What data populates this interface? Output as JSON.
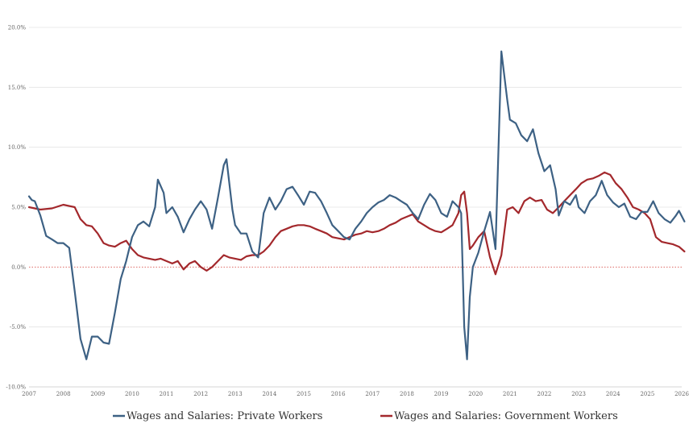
{
  "chart_data": {
    "type": "line",
    "title": "",
    "xlabel": "",
    "ylabel": "",
    "ylim": [
      -10,
      20
    ],
    "xlim": [
      2007,
      2026
    ],
    "y_ticks": [
      "20.0%",
      "15.0%",
      "10.0%",
      "5.0%",
      "0.0%",
      "-5.0%",
      "-10.0%"
    ],
    "y_tick_values": [
      20,
      15,
      10,
      5,
      0,
      -5,
      -10
    ],
    "x_ticks": [
      "2007",
      "2008",
      "2009",
      "2010",
      "2011",
      "2012",
      "2013",
      "2014",
      "2015",
      "2016",
      "2017",
      "2018",
      "2019",
      "2020",
      "2021",
      "2022",
      "2023",
      "2024",
      "2025",
      "2026"
    ],
    "x_tick_values": [
      2007,
      2008,
      2009,
      2010,
      2011,
      2012,
      2013,
      2014,
      2015,
      2016,
      2017,
      2018,
      2019,
      2020,
      2021,
      2022,
      2023,
      2024,
      2025,
      2026
    ],
    "grid": "horizontal",
    "zero_line": "dotted",
    "legend_position": "bottom",
    "series": [
      {
        "name": "Wages and Salaries: Private Workers",
        "color": "#3d6184",
        "points": [
          [
            2007.0,
            5.9
          ],
          [
            2007.08,
            5.6
          ],
          [
            2007.17,
            5.5
          ],
          [
            2007.33,
            4.3
          ],
          [
            2007.5,
            2.6
          ],
          [
            2007.67,
            2.3
          ],
          [
            2007.83,
            2.0
          ],
          [
            2008.0,
            2.0
          ],
          [
            2008.17,
            1.6
          ],
          [
            2008.33,
            -2.0
          ],
          [
            2008.5,
            -6.0
          ],
          [
            2008.67,
            -7.7
          ],
          [
            2008.83,
            -5.8
          ],
          [
            2009.0,
            -5.8
          ],
          [
            2009.17,
            -6.3
          ],
          [
            2009.33,
            -6.4
          ],
          [
            2009.5,
            -3.8
          ],
          [
            2009.67,
            -1.0
          ],
          [
            2009.83,
            0.5
          ],
          [
            2010.0,
            2.5
          ],
          [
            2010.17,
            3.5
          ],
          [
            2010.33,
            3.8
          ],
          [
            2010.5,
            3.4
          ],
          [
            2010.67,
            5.0
          ],
          [
            2010.75,
            7.3
          ],
          [
            2010.92,
            6.2
          ],
          [
            2011.0,
            4.5
          ],
          [
            2011.17,
            5.0
          ],
          [
            2011.33,
            4.2
          ],
          [
            2011.5,
            2.9
          ],
          [
            2011.67,
            4.0
          ],
          [
            2011.83,
            4.8
          ],
          [
            2012.0,
            5.5
          ],
          [
            2012.17,
            4.8
          ],
          [
            2012.33,
            3.2
          ],
          [
            2012.5,
            5.8
          ],
          [
            2012.67,
            8.5
          ],
          [
            2012.75,
            9.0
          ],
          [
            2012.92,
            4.8
          ],
          [
            2013.0,
            3.5
          ],
          [
            2013.17,
            2.8
          ],
          [
            2013.33,
            2.8
          ],
          [
            2013.5,
            1.3
          ],
          [
            2013.67,
            0.8
          ],
          [
            2013.83,
            4.5
          ],
          [
            2014.0,
            5.8
          ],
          [
            2014.17,
            4.8
          ],
          [
            2014.33,
            5.5
          ],
          [
            2014.5,
            6.5
          ],
          [
            2014.67,
            6.7
          ],
          [
            2014.83,
            6.0
          ],
          [
            2015.0,
            5.2
          ],
          [
            2015.17,
            6.3
          ],
          [
            2015.33,
            6.2
          ],
          [
            2015.5,
            5.5
          ],
          [
            2015.67,
            4.5
          ],
          [
            2015.83,
            3.5
          ],
          [
            2016.0,
            3.0
          ],
          [
            2016.17,
            2.5
          ],
          [
            2016.33,
            2.3
          ],
          [
            2016.5,
            3.2
          ],
          [
            2016.67,
            3.8
          ],
          [
            2016.83,
            4.5
          ],
          [
            2017.0,
            5.0
          ],
          [
            2017.17,
            5.4
          ],
          [
            2017.33,
            5.6
          ],
          [
            2017.5,
            6.0
          ],
          [
            2017.67,
            5.8
          ],
          [
            2017.83,
            5.5
          ],
          [
            2018.0,
            5.2
          ],
          [
            2018.17,
            4.5
          ],
          [
            2018.33,
            4.0
          ],
          [
            2018.5,
            5.2
          ],
          [
            2018.67,
            6.1
          ],
          [
            2018.83,
            5.6
          ],
          [
            2019.0,
            4.5
          ],
          [
            2019.17,
            4.2
          ],
          [
            2019.33,
            5.5
          ],
          [
            2019.5,
            5.0
          ],
          [
            2019.58,
            4.5
          ],
          [
            2019.67,
            -5.0
          ],
          [
            2019.75,
            -7.7
          ],
          [
            2019.83,
            -2.5
          ],
          [
            2019.92,
            0.0
          ],
          [
            2020.08,
            1.2
          ],
          [
            2020.25,
            3.0
          ],
          [
            2020.42,
            4.6
          ],
          [
            2020.58,
            1.5
          ],
          [
            2020.75,
            18.0
          ],
          [
            2020.92,
            14.0
          ],
          [
            2021.0,
            12.3
          ],
          [
            2021.17,
            12.0
          ],
          [
            2021.33,
            11.0
          ],
          [
            2021.5,
            10.5
          ],
          [
            2021.67,
            11.5
          ],
          [
            2021.83,
            9.5
          ],
          [
            2022.0,
            8.0
          ],
          [
            2022.17,
            8.5
          ],
          [
            2022.33,
            6.5
          ],
          [
            2022.42,
            4.3
          ],
          [
            2022.58,
            5.5
          ],
          [
            2022.75,
            5.2
          ],
          [
            2022.92,
            6.0
          ],
          [
            2023.0,
            5.0
          ],
          [
            2023.17,
            4.5
          ],
          [
            2023.33,
            5.5
          ],
          [
            2023.5,
            6.0
          ],
          [
            2023.67,
            7.2
          ],
          [
            2023.83,
            6.0
          ],
          [
            2024.0,
            5.4
          ],
          [
            2024.17,
            5.0
          ],
          [
            2024.33,
            5.3
          ],
          [
            2024.5,
            4.2
          ],
          [
            2024.67,
            4.0
          ],
          [
            2024.83,
            4.6
          ],
          [
            2025.0,
            4.6
          ],
          [
            2025.17,
            5.5
          ],
          [
            2025.33,
            4.5
          ],
          [
            2025.5,
            4.0
          ],
          [
            2025.67,
            3.7
          ],
          [
            2025.83,
            4.3
          ],
          [
            2025.92,
            4.7
          ],
          [
            2026.08,
            3.8
          ]
        ]
      },
      {
        "name": "Wages and Salaries: Government Workers",
        "color": "#a3282c",
        "points": [
          [
            2007.0,
            5.0
          ],
          [
            2007.33,
            4.8
          ],
          [
            2007.67,
            4.9
          ],
          [
            2008.0,
            5.2
          ],
          [
            2008.33,
            5.0
          ],
          [
            2008.5,
            4.0
          ],
          [
            2008.67,
            3.5
          ],
          [
            2008.83,
            3.4
          ],
          [
            2009.0,
            2.8
          ],
          [
            2009.17,
            2.0
          ],
          [
            2009.33,
            1.8
          ],
          [
            2009.5,
            1.7
          ],
          [
            2009.67,
            2.0
          ],
          [
            2009.83,
            2.2
          ],
          [
            2010.0,
            1.5
          ],
          [
            2010.17,
            1.0
          ],
          [
            2010.33,
            0.8
          ],
          [
            2010.5,
            0.7
          ],
          [
            2010.67,
            0.6
          ],
          [
            2010.83,
            0.7
          ],
          [
            2011.0,
            0.5
          ],
          [
            2011.17,
            0.3
          ],
          [
            2011.33,
            0.5
          ],
          [
            2011.5,
            -0.2
          ],
          [
            2011.67,
            0.3
          ],
          [
            2011.83,
            0.5
          ],
          [
            2012.0,
            0.0
          ],
          [
            2012.17,
            -0.3
          ],
          [
            2012.33,
            0.0
          ],
          [
            2012.5,
            0.5
          ],
          [
            2012.67,
            1.0
          ],
          [
            2012.83,
            0.8
          ],
          [
            2013.0,
            0.7
          ],
          [
            2013.17,
            0.6
          ],
          [
            2013.33,
            0.9
          ],
          [
            2013.5,
            1.0
          ],
          [
            2013.67,
            1.0
          ],
          [
            2013.83,
            1.3
          ],
          [
            2014.0,
            1.8
          ],
          [
            2014.17,
            2.5
          ],
          [
            2014.33,
            3.0
          ],
          [
            2014.5,
            3.2
          ],
          [
            2014.67,
            3.4
          ],
          [
            2014.83,
            3.5
          ],
          [
            2015.0,
            3.5
          ],
          [
            2015.17,
            3.4
          ],
          [
            2015.33,
            3.2
          ],
          [
            2015.5,
            3.0
          ],
          [
            2015.67,
            2.8
          ],
          [
            2015.83,
            2.5
          ],
          [
            2016.0,
            2.4
          ],
          [
            2016.17,
            2.3
          ],
          [
            2016.33,
            2.5
          ],
          [
            2016.5,
            2.7
          ],
          [
            2016.67,
            2.8
          ],
          [
            2016.83,
            3.0
          ],
          [
            2017.0,
            2.9
          ],
          [
            2017.17,
            3.0
          ],
          [
            2017.33,
            3.2
          ],
          [
            2017.5,
            3.5
          ],
          [
            2017.67,
            3.7
          ],
          [
            2017.83,
            4.0
          ],
          [
            2018.0,
            4.2
          ],
          [
            2018.17,
            4.4
          ],
          [
            2018.33,
            3.8
          ],
          [
            2018.5,
            3.5
          ],
          [
            2018.67,
            3.2
          ],
          [
            2018.83,
            3.0
          ],
          [
            2019.0,
            2.9
          ],
          [
            2019.17,
            3.2
          ],
          [
            2019.33,
            3.5
          ],
          [
            2019.5,
            4.5
          ],
          [
            2019.58,
            6.0
          ],
          [
            2019.67,
            6.3
          ],
          [
            2019.75,
            4.5
          ],
          [
            2019.83,
            1.5
          ],
          [
            2019.92,
            1.8
          ],
          [
            2020.08,
            2.5
          ],
          [
            2020.25,
            3.0
          ],
          [
            2020.42,
            0.8
          ],
          [
            2020.58,
            -0.6
          ],
          [
            2020.75,
            1.0
          ],
          [
            2020.92,
            4.8
          ],
          [
            2021.08,
            5.0
          ],
          [
            2021.25,
            4.5
          ],
          [
            2021.42,
            5.5
          ],
          [
            2021.58,
            5.8
          ],
          [
            2021.75,
            5.5
          ],
          [
            2021.92,
            5.6
          ],
          [
            2022.08,
            4.8
          ],
          [
            2022.25,
            4.5
          ],
          [
            2022.42,
            5.0
          ],
          [
            2022.58,
            5.5
          ],
          [
            2022.75,
            6.0
          ],
          [
            2022.92,
            6.5
          ],
          [
            2023.08,
            7.0
          ],
          [
            2023.25,
            7.3
          ],
          [
            2023.42,
            7.4
          ],
          [
            2023.58,
            7.6
          ],
          [
            2023.75,
            7.9
          ],
          [
            2023.92,
            7.7
          ],
          [
            2024.08,
            7.0
          ],
          [
            2024.25,
            6.5
          ],
          [
            2024.42,
            5.8
          ],
          [
            2024.58,
            5.0
          ],
          [
            2024.75,
            4.8
          ],
          [
            2024.92,
            4.5
          ],
          [
            2025.08,
            4.0
          ],
          [
            2025.25,
            2.5
          ],
          [
            2025.42,
            2.1
          ],
          [
            2025.58,
            2.0
          ],
          [
            2025.75,
            1.9
          ],
          [
            2025.92,
            1.7
          ],
          [
            2026.08,
            1.3
          ]
        ]
      }
    ]
  }
}
